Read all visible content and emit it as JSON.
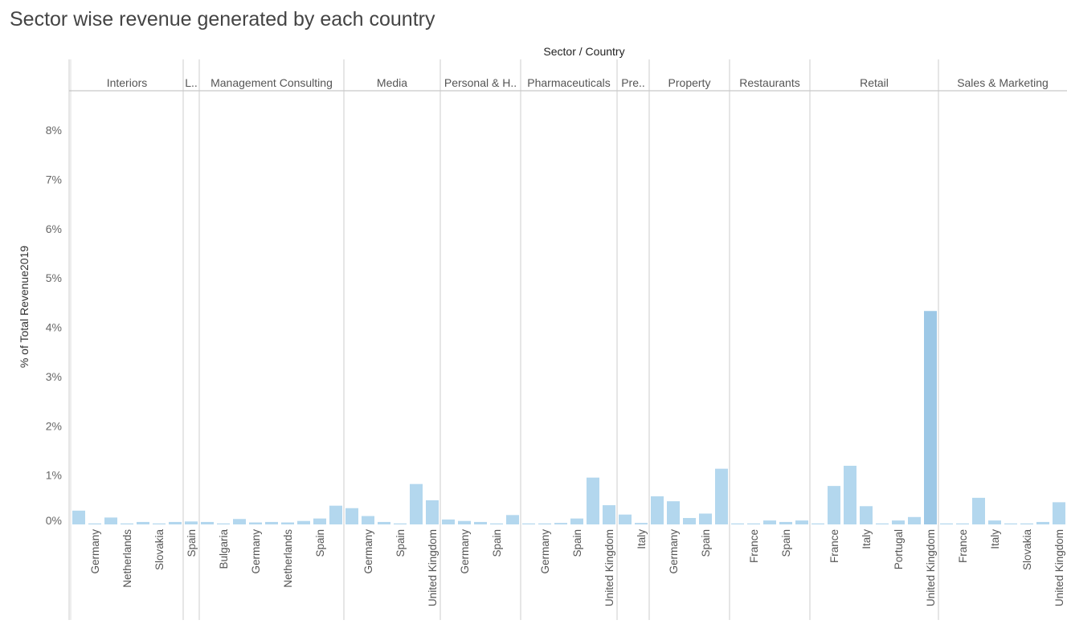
{
  "title": "Sector wise revenue generated by each country",
  "chart_data": {
    "type": "bar",
    "title": "Sector wise revenue generated by each country",
    "header": "Sector / Country",
    "ylabel": "% of Total Revenue2019",
    "ylim": [
      -0.2,
      8.8
    ],
    "yticks": [
      {
        "value": 0,
        "label": "0%"
      },
      {
        "value": 1,
        "label": "1%"
      },
      {
        "value": 2,
        "label": "2%"
      },
      {
        "value": 3,
        "label": "3%"
      },
      {
        "value": 4,
        "label": "4%"
      },
      {
        "value": 5,
        "label": "5%"
      },
      {
        "value": 6,
        "label": "6%"
      },
      {
        "value": 7,
        "label": "7%"
      },
      {
        "value": 8,
        "label": "8%"
      }
    ],
    "bar_color": "#b3d7ee",
    "highlight_color": "#9dc8e6",
    "grid": false,
    "panels": [
      {
        "sector": "Interiors",
        "bars": [
          {
            "country": "",
            "value": 0.28
          },
          {
            "country": "Germany",
            "value": 0.02
          },
          {
            "country": "",
            "value": 0.14
          },
          {
            "country": "Netherlands",
            "value": 0.02
          },
          {
            "country": "",
            "value": 0.05
          },
          {
            "country": "Slovakia",
            "value": 0.02
          },
          {
            "country": "",
            "value": 0.05
          }
        ]
      },
      {
        "sector": "L..",
        "bars": [
          {
            "country": "Spain",
            "value": 0.06
          }
        ]
      },
      {
        "sector": "Management Consulting",
        "bars": [
          {
            "country": "",
            "value": 0.05
          },
          {
            "country": "Bulgaria",
            "value": 0.02
          },
          {
            "country": "",
            "value": 0.11
          },
          {
            "country": "Germany",
            "value": 0.04
          },
          {
            "country": "",
            "value": 0.05
          },
          {
            "country": "Netherlands",
            "value": 0.04
          },
          {
            "country": "",
            "value": 0.07
          },
          {
            "country": "Spain",
            "value": 0.12
          },
          {
            "country": "",
            "value": 0.38
          }
        ]
      },
      {
        "sector": "Media",
        "bars": [
          {
            "country": "",
            "value": 0.33
          },
          {
            "country": "Germany",
            "value": 0.17
          },
          {
            "country": "",
            "value": 0.05
          },
          {
            "country": "Spain",
            "value": 0.02
          },
          {
            "country": "",
            "value": 0.82
          },
          {
            "country": "United Kingdom",
            "value": 0.49
          }
        ]
      },
      {
        "sector": "Personal & H..",
        "bars": [
          {
            "country": "",
            "value": 0.1
          },
          {
            "country": "Germany",
            "value": 0.07
          },
          {
            "country": "",
            "value": 0.05
          },
          {
            "country": "Spain",
            "value": 0.02
          },
          {
            "country": "",
            "value": 0.19
          }
        ]
      },
      {
        "sector": "Pharmaceuticals",
        "bars": [
          {
            "country": "",
            "value": 0.02
          },
          {
            "country": "Germany",
            "value": 0.02
          },
          {
            "country": "",
            "value": 0.03
          },
          {
            "country": "Spain",
            "value": 0.12
          },
          {
            "country": "",
            "value": 0.95
          },
          {
            "country": "United Kingdom",
            "value": 0.39
          }
        ]
      },
      {
        "sector": "Pre..",
        "bars": [
          {
            "country": "",
            "value": 0.2
          },
          {
            "country": "Italy",
            "value": 0.03
          }
        ]
      },
      {
        "sector": "Property",
        "bars": [
          {
            "country": "",
            "value": 0.57
          },
          {
            "country": "Germany",
            "value": 0.47
          },
          {
            "country": "",
            "value": 0.13
          },
          {
            "country": "Spain",
            "value": 0.22
          },
          {
            "country": "",
            "value": 1.13
          }
        ]
      },
      {
        "sector": "Restaurants",
        "bars": [
          {
            "country": "",
            "value": 0.02
          },
          {
            "country": "France",
            "value": 0.02
          },
          {
            "country": "",
            "value": 0.08
          },
          {
            "country": "Spain",
            "value": 0.05
          },
          {
            "country": "",
            "value": 0.08
          }
        ]
      },
      {
        "sector": "Retail",
        "bars": [
          {
            "country": "",
            "value": 0.02
          },
          {
            "country": "France",
            "value": 0.78
          },
          {
            "country": "",
            "value": 1.19
          },
          {
            "country": "Italy",
            "value": 0.37
          },
          {
            "country": "",
            "value": 0.02
          },
          {
            "country": "Portugal",
            "value": 0.08
          },
          {
            "country": "",
            "value": 0.15
          },
          {
            "country": "United Kingdom",
            "value": 4.33
          }
        ]
      },
      {
        "sector": "Sales & Marketing",
        "bars": [
          {
            "country": "",
            "value": 0.02
          },
          {
            "country": "France",
            "value": 0.02
          },
          {
            "country": "",
            "value": 0.54
          },
          {
            "country": "Italy",
            "value": 0.08
          },
          {
            "country": "",
            "value": 0.02
          },
          {
            "country": "Slovakia",
            "value": 0.02
          },
          {
            "country": "",
            "value": 0.05
          },
          {
            "country": "United Kingdom",
            "value": 0.45
          }
        ]
      }
    ]
  }
}
